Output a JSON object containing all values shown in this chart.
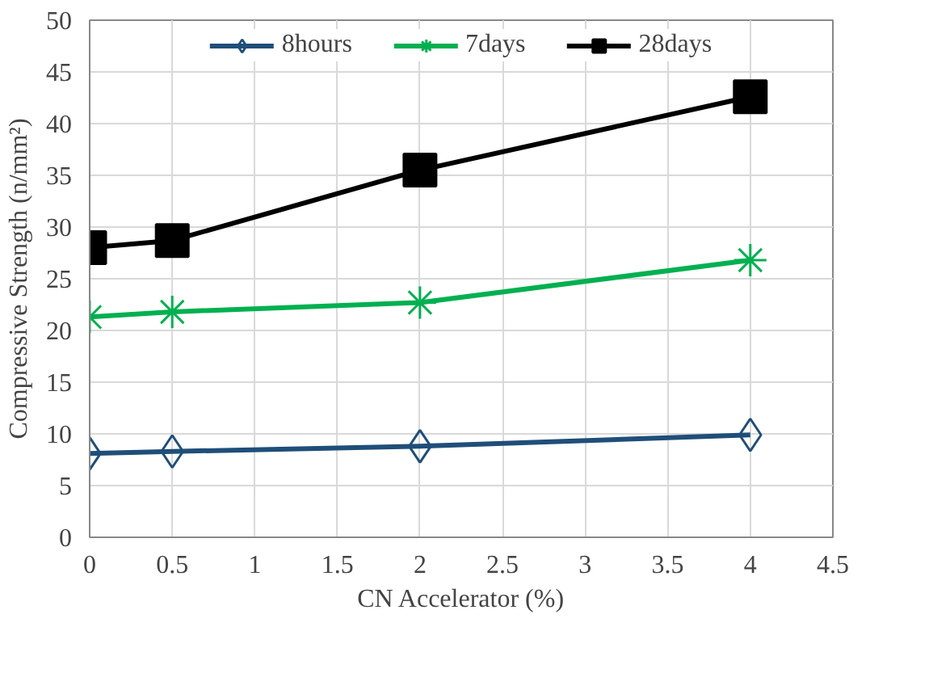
{
  "chart_data": {
    "type": "line",
    "xlabel": "CN Accelerator (%)",
    "ylabel": "Compressive Strength (n/mm²)",
    "x": [
      0,
      0.5,
      2,
      4
    ],
    "series": [
      {
        "name": "8hours",
        "color": "#1f4e79",
        "marker": "diamond",
        "values": [
          8.1,
          8.3,
          8.8,
          9.9
        ]
      },
      {
        "name": "7days",
        "color": "#00b050",
        "marker": "cross",
        "values": [
          21.3,
          21.8,
          22.7,
          26.8
        ]
      },
      {
        "name": "28days",
        "color": "#000000",
        "marker": "square",
        "values": [
          28.0,
          28.7,
          35.5,
          42.6
        ]
      }
    ],
    "xlim": [
      0,
      4.5
    ],
    "xticks": [
      0,
      0.5,
      1,
      1.5,
      2,
      2.5,
      3,
      3.5,
      4,
      4.5
    ],
    "ylim": [
      0,
      50
    ],
    "yticks": [
      0,
      5,
      10,
      15,
      20,
      25,
      30,
      35,
      40,
      45,
      50
    ],
    "grid": true,
    "legend": "top"
  }
}
